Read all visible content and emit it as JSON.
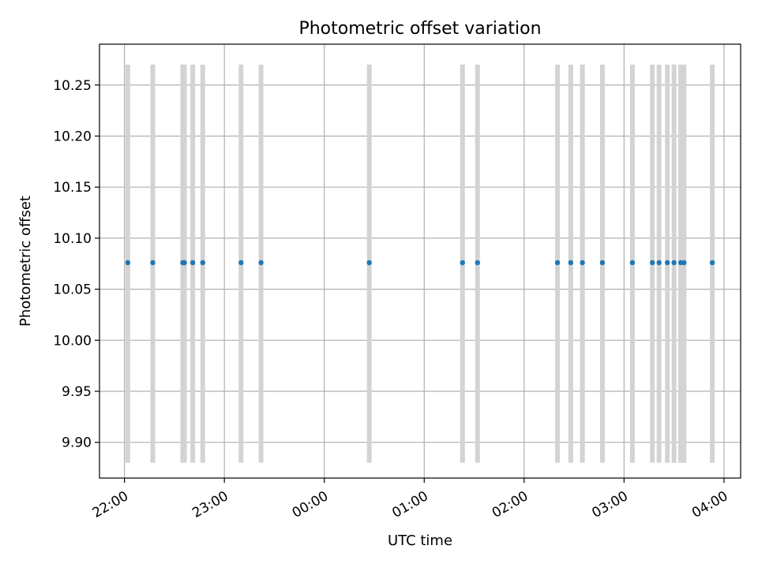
{
  "chart_data": {
    "type": "scatter",
    "title": "Photometric offset variation",
    "xlabel": "UTC time",
    "ylabel": "Photometric offset",
    "x_axis_kind": "time",
    "x_range": [
      "21:45",
      "04:10"
    ],
    "x_ticks": [
      "22:00",
      "23:00",
      "00:00",
      "01:00",
      "02:00",
      "03:00",
      "04:00"
    ],
    "y_range": [
      9.865,
      10.29
    ],
    "y_ticks": [
      "9.90",
      "9.95",
      "10.00",
      "10.05",
      "10.10",
      "10.15",
      "10.20",
      "10.25"
    ],
    "grid": true,
    "error_band": [
      9.88,
      10.27
    ],
    "points": [
      {
        "x": "22:02",
        "y": 10.076
      },
      {
        "x": "22:17",
        "y": 10.076
      },
      {
        "x": "22:35",
        "y": 10.076
      },
      {
        "x": "22:36",
        "y": 10.076
      },
      {
        "x": "22:41",
        "y": 10.076
      },
      {
        "x": "22:47",
        "y": 10.076
      },
      {
        "x": "23:10",
        "y": 10.076
      },
      {
        "x": "23:22",
        "y": 10.076
      },
      {
        "x": "00:27",
        "y": 10.076
      },
      {
        "x": "01:23",
        "y": 10.076
      },
      {
        "x": "01:32",
        "y": 10.076
      },
      {
        "x": "02:20",
        "y": 10.076
      },
      {
        "x": "02:28",
        "y": 10.076
      },
      {
        "x": "02:35",
        "y": 10.076
      },
      {
        "x": "02:47",
        "y": 10.076
      },
      {
        "x": "03:05",
        "y": 10.076
      },
      {
        "x": "03:17",
        "y": 10.076
      },
      {
        "x": "03:21",
        "y": 10.076
      },
      {
        "x": "03:26",
        "y": 10.076
      },
      {
        "x": "03:30",
        "y": 10.076
      },
      {
        "x": "03:34",
        "y": 10.076
      },
      {
        "x": "03:36",
        "y": 10.076
      },
      {
        "x": "03:53",
        "y": 10.076
      }
    ],
    "colors": {
      "point": "#1f77b4",
      "error_bar": "#d3d3d3",
      "grid": "#b0b0b0",
      "axis": "#000000"
    }
  }
}
